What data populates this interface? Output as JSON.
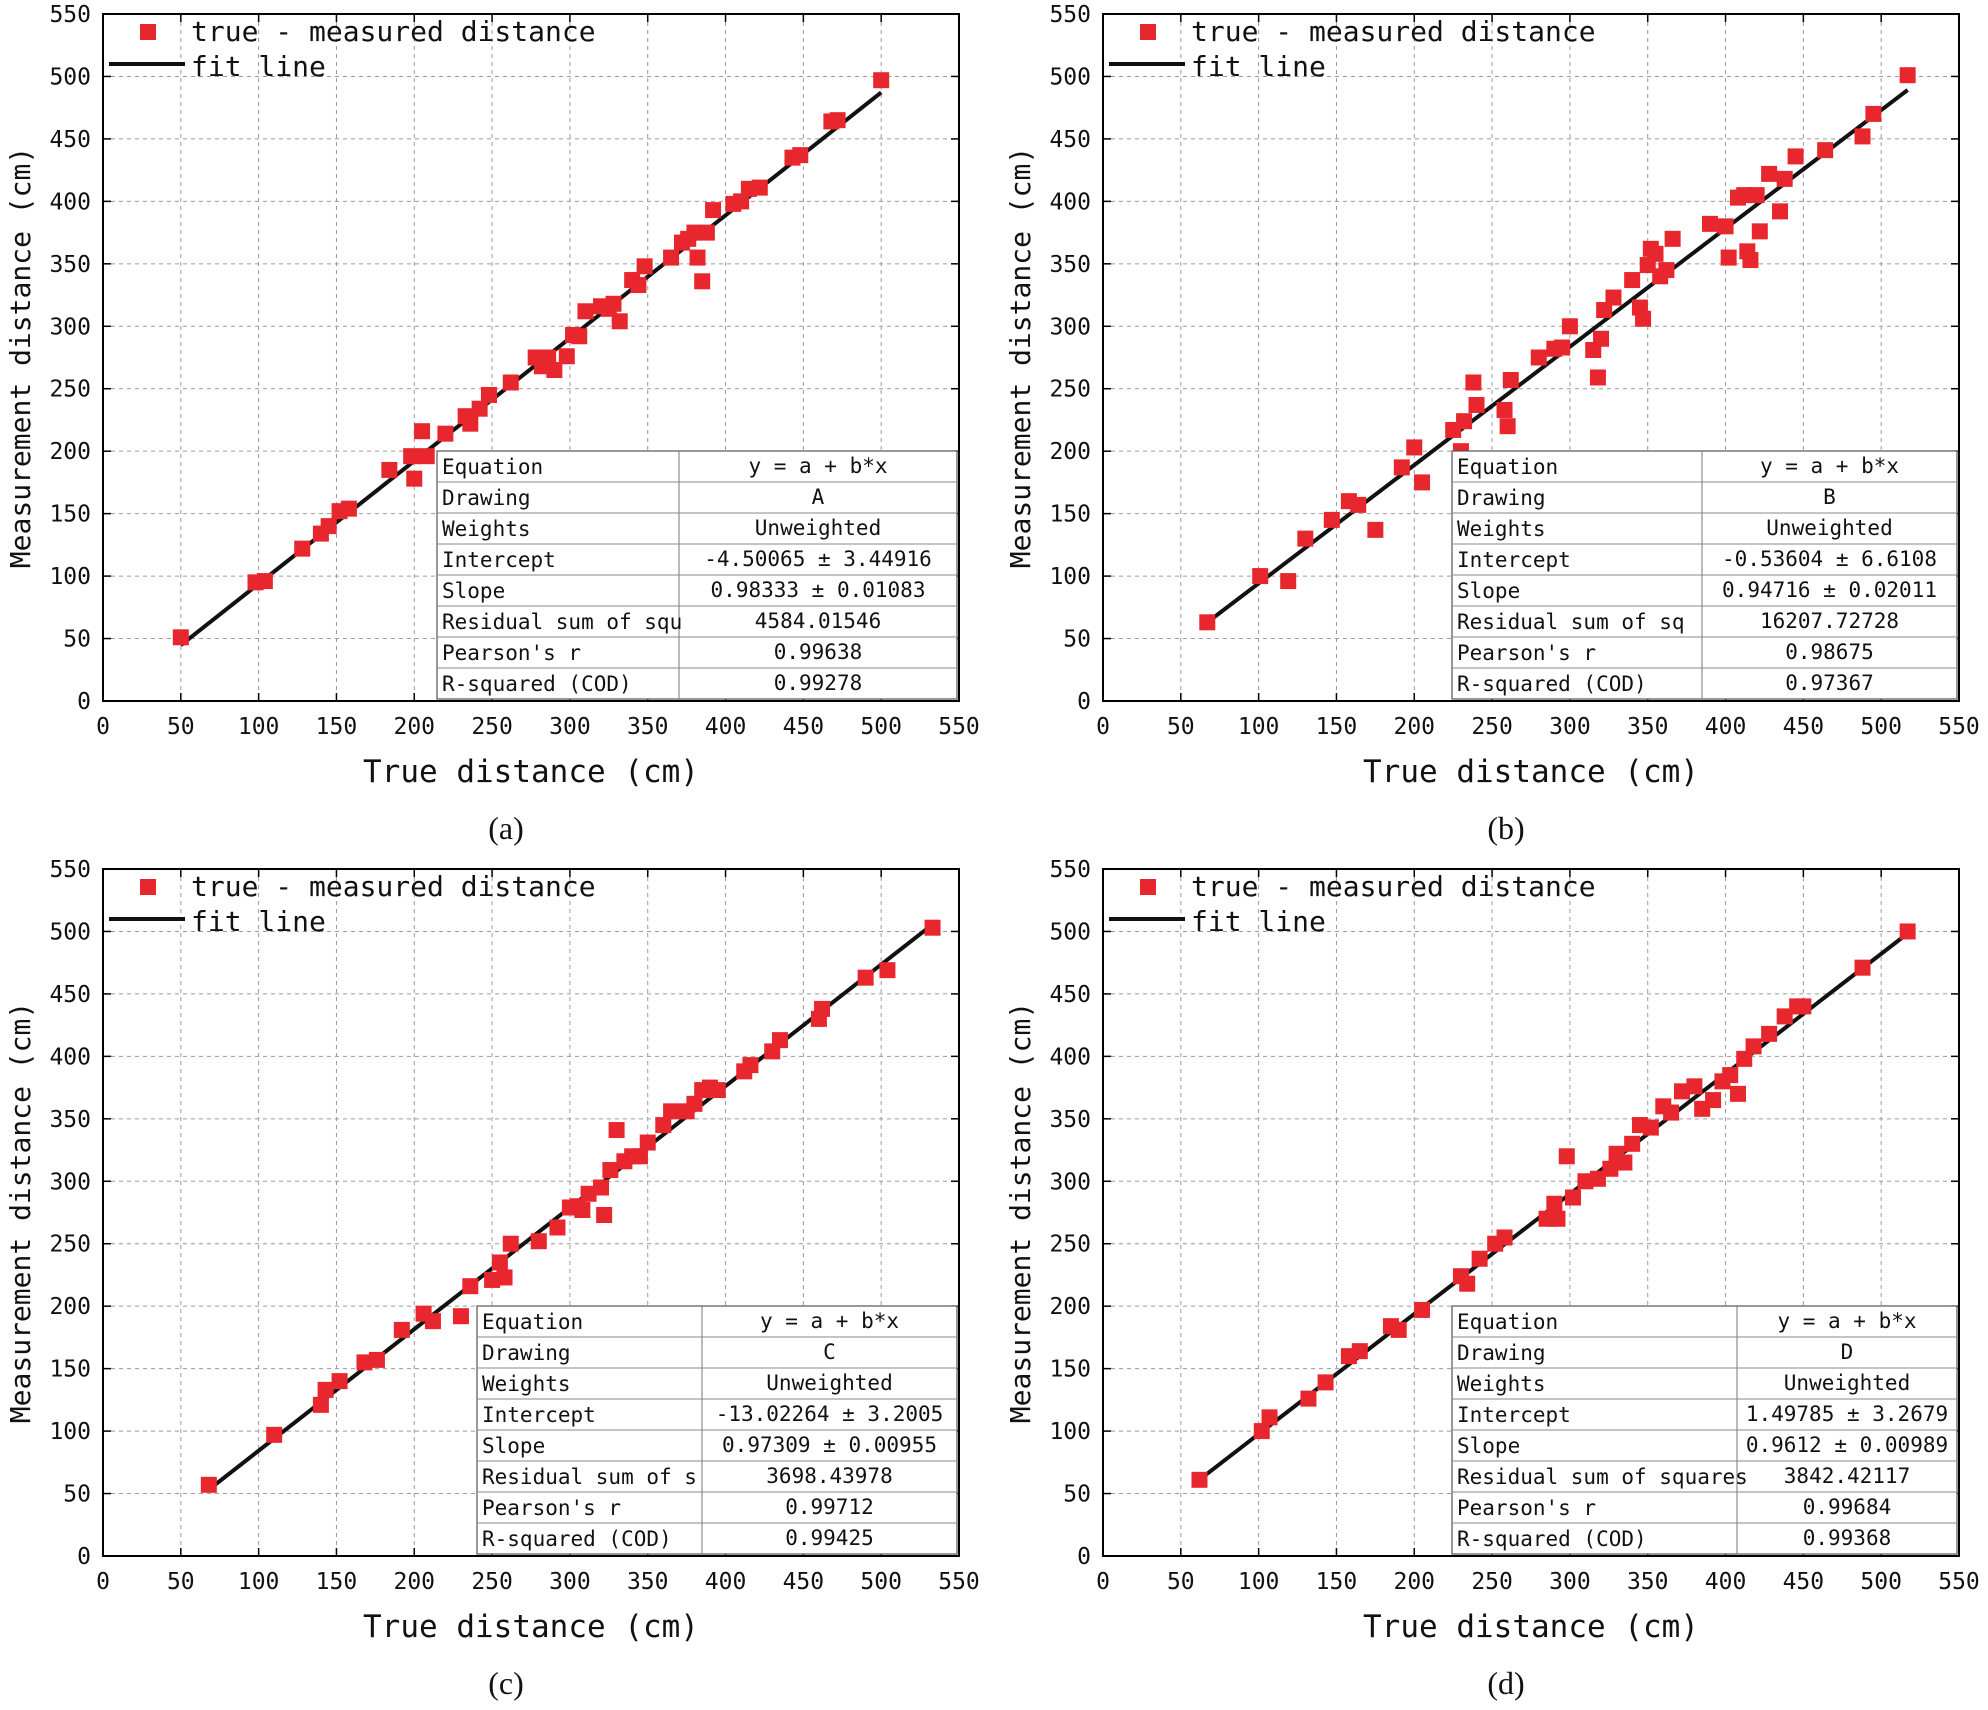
{
  "figure": {
    "legend": {
      "marker_label": "true - measured distance",
      "line_label": "fit line"
    },
    "colors": {
      "marker": "#e8262d",
      "fit_line": "#111111",
      "grid": "#9a9a9a",
      "axis": "#000000"
    }
  },
  "chart_data": [
    {
      "type": "scatter",
      "panel_label": "(a)",
      "xlabel": "True distance (cm)",
      "ylabel": "Measurement distance (cm)",
      "xlim": [
        0,
        550
      ],
      "ylim": [
        0,
        550
      ],
      "xticks": [
        0,
        50,
        100,
        150,
        200,
        250,
        300,
        350,
        400,
        450,
        500,
        550
      ],
      "yticks": [
        0,
        50,
        100,
        150,
        200,
        250,
        300,
        350,
        400,
        450,
        500,
        550
      ],
      "grid": true,
      "legend": [
        "true - measured distance",
        "fit line"
      ],
      "fit": {
        "intercept": -4.50065,
        "slope": 0.98333,
        "x_range": [
          50,
          500
        ]
      },
      "stats_table": [
        [
          "Equation",
          "y = a + b*x"
        ],
        [
          "Drawing",
          "A"
        ],
        [
          "Weights",
          "Unweighted"
        ],
        [
          "Intercept",
          "-4.50065 ± 3.44916"
        ],
        [
          "Slope",
          "0.98333 ± 0.01083"
        ],
        [
          "Residual sum of squ",
          "4584.01546"
        ],
        [
          "Pearson's r",
          "0.99638"
        ],
        [
          "R-squared (COD)",
          "0.99278"
        ]
      ],
      "points": [
        [
          50,
          51
        ],
        [
          98,
          95
        ],
        [
          104,
          96
        ],
        [
          128,
          122
        ],
        [
          140,
          134
        ],
        [
          145,
          140
        ],
        [
          152,
          152
        ],
        [
          158,
          154
        ],
        [
          184,
          185
        ],
        [
          198,
          196
        ],
        [
          200,
          178
        ],
        [
          205,
          216
        ],
        [
          208,
          196
        ],
        [
          220,
          214
        ],
        [
          233,
          228
        ],
        [
          236,
          222
        ],
        [
          242,
          234
        ],
        [
          248,
          245
        ],
        [
          262,
          255
        ],
        [
          278,
          275
        ],
        [
          282,
          268
        ],
        [
          286,
          275
        ],
        [
          290,
          265
        ],
        [
          298,
          276
        ],
        [
          302,
          293
        ],
        [
          306,
          292
        ],
        [
          310,
          312
        ],
        [
          320,
          316
        ],
        [
          325,
          314
        ],
        [
          328,
          318
        ],
        [
          332,
          304
        ],
        [
          340,
          337
        ],
        [
          344,
          333
        ],
        [
          348,
          348
        ],
        [
          365,
          355
        ],
        [
          372,
          367
        ],
        [
          376,
          370
        ],
        [
          380,
          375
        ],
        [
          382,
          355
        ],
        [
          385,
          336
        ],
        [
          388,
          375
        ],
        [
          392,
          393
        ],
        [
          405,
          398
        ],
        [
          410,
          400
        ],
        [
          415,
          410
        ],
        [
          422,
          411
        ],
        [
          443,
          435
        ],
        [
          448,
          437
        ],
        [
          468,
          464
        ],
        [
          472,
          465
        ],
        [
          500,
          497
        ]
      ]
    },
    {
      "type": "scatter",
      "panel_label": "(b)",
      "xlabel": "True distance (cm)",
      "ylabel": "Measurement distance (cm)",
      "xlim": [
        0,
        550
      ],
      "ylim": [
        0,
        550
      ],
      "xticks": [
        0,
        50,
        100,
        150,
        200,
        250,
        300,
        350,
        400,
        450,
        500,
        550
      ],
      "yticks": [
        0,
        50,
        100,
        150,
        200,
        250,
        300,
        350,
        400,
        450,
        500,
        550
      ],
      "grid": true,
      "legend": [
        "true - measured distance",
        "fit line"
      ],
      "fit": {
        "intercept": -0.53604,
        "slope": 0.94716,
        "x_range": [
          67,
          517
        ]
      },
      "stats_table": [
        [
          "Equation",
          "y = a + b*x"
        ],
        [
          "Drawing",
          "B"
        ],
        [
          "Weights",
          "Unweighted"
        ],
        [
          "Intercept",
          "-0.53604 ± 6.6108"
        ],
        [
          "Slope",
          "0.94716 ± 0.02011"
        ],
        [
          "Residual sum of sq",
          "16207.72728"
        ],
        [
          "Pearson's r",
          "0.98675"
        ],
        [
          "R-squared (COD)",
          "0.97367"
        ]
      ],
      "points": [
        [
          67,
          63
        ],
        [
          101,
          100
        ],
        [
          119,
          96
        ],
        [
          130,
          130
        ],
        [
          147,
          145
        ],
        [
          158,
          160
        ],
        [
          164,
          157
        ],
        [
          175,
          137
        ],
        [
          192,
          187
        ],
        [
          200,
          203
        ],
        [
          205,
          175
        ],
        [
          225,
          217
        ],
        [
          230,
          200
        ],
        [
          232,
          224
        ],
        [
          238,
          255
        ],
        [
          240,
          237
        ],
        [
          258,
          233
        ],
        [
          260,
          220
        ],
        [
          262,
          257
        ],
        [
          280,
          275
        ],
        [
          290,
          282
        ],
        [
          295,
          283
        ],
        [
          300,
          300
        ],
        [
          315,
          281
        ],
        [
          318,
          259
        ],
        [
          320,
          290
        ],
        [
          322,
          313
        ],
        [
          328,
          323
        ],
        [
          340,
          337
        ],
        [
          345,
          315
        ],
        [
          347,
          306
        ],
        [
          350,
          349
        ],
        [
          352,
          362
        ],
        [
          355,
          358
        ],
        [
          358,
          340
        ],
        [
          362,
          345
        ],
        [
          366,
          370
        ],
        [
          390,
          382
        ],
        [
          400,
          380
        ],
        [
          402,
          355
        ],
        [
          408,
          403
        ],
        [
          412,
          405
        ],
        [
          414,
          360
        ],
        [
          416,
          353
        ],
        [
          420,
          405
        ],
        [
          422,
          376
        ],
        [
          428,
          422
        ],
        [
          435,
          392
        ],
        [
          438,
          418
        ],
        [
          445,
          436
        ],
        [
          464,
          441
        ],
        [
          488,
          452
        ],
        [
          495,
          470
        ],
        [
          517,
          501
        ]
      ]
    },
    {
      "type": "scatter",
      "panel_label": "(c)",
      "xlabel": "True distance (cm)",
      "ylabel": "Measurement distance (cm)",
      "xlim": [
        0,
        550
      ],
      "ylim": [
        0,
        550
      ],
      "xticks": [
        0,
        50,
        100,
        150,
        200,
        250,
        300,
        350,
        400,
        450,
        500,
        550
      ],
      "yticks": [
        0,
        50,
        100,
        150,
        200,
        250,
        300,
        350,
        400,
        450,
        500,
        550
      ],
      "grid": true,
      "legend": [
        "true - measured distance",
        "fit line"
      ],
      "fit": {
        "intercept": -13.02264,
        "slope": 0.97309,
        "x_range": [
          68,
          533
        ]
      },
      "stats_table": [
        [
          "Equation",
          "y = a + b*x"
        ],
        [
          "Drawing",
          "C"
        ],
        [
          "Weights",
          "Unweighted"
        ],
        [
          "Intercept",
          "-13.02264 ± 3.2005"
        ],
        [
          "Slope",
          "0.97309 ± 0.00955"
        ],
        [
          "Residual sum of s",
          "3698.43978"
        ],
        [
          "Pearson's r",
          "0.99712"
        ],
        [
          "R-squared (COD)",
          "0.99425"
        ]
      ],
      "points": [
        [
          68,
          57
        ],
        [
          110,
          97
        ],
        [
          140,
          121
        ],
        [
          143,
          133
        ],
        [
          152,
          140
        ],
        [
          168,
          155
        ],
        [
          176,
          157
        ],
        [
          192,
          181
        ],
        [
          206,
          194
        ],
        [
          212,
          188
        ],
        [
          230,
          192
        ],
        [
          236,
          216
        ],
        [
          250,
          221
        ],
        [
          255,
          235
        ],
        [
          258,
          223
        ],
        [
          262,
          250
        ],
        [
          280,
          252
        ],
        [
          292,
          263
        ],
        [
          300,
          279
        ],
        [
          305,
          280
        ],
        [
          308,
          277
        ],
        [
          312,
          290
        ],
        [
          320,
          295
        ],
        [
          322,
          273
        ],
        [
          326,
          309
        ],
        [
          330,
          341
        ],
        [
          335,
          316
        ],
        [
          340,
          320
        ],
        [
          345,
          320
        ],
        [
          350,
          331
        ],
        [
          360,
          345
        ],
        [
          365,
          356
        ],
        [
          375,
          356
        ],
        [
          380,
          362
        ],
        [
          385,
          373
        ],
        [
          390,
          375
        ],
        [
          395,
          373
        ],
        [
          412,
          388
        ],
        [
          416,
          393
        ],
        [
          430,
          404
        ],
        [
          435,
          413
        ],
        [
          460,
          430
        ],
        [
          462,
          438
        ],
        [
          490,
          463
        ],
        [
          504,
          469
        ],
        [
          533,
          503
        ]
      ]
    },
    {
      "type": "scatter",
      "panel_label": "(d)",
      "xlabel": "True distance (cm)",
      "ylabel": "Measurement distance (cm)",
      "xlim": [
        0,
        550
      ],
      "ylim": [
        0,
        550
      ],
      "xticks": [
        0,
        50,
        100,
        150,
        200,
        250,
        300,
        350,
        400,
        450,
        500,
        550
      ],
      "yticks": [
        0,
        50,
        100,
        150,
        200,
        250,
        300,
        350,
        400,
        450,
        500,
        550
      ],
      "grid": true,
      "legend": [
        "true - measured distance",
        "fit line"
      ],
      "fit": {
        "intercept": 1.49785,
        "slope": 0.9612,
        "x_range": [
          62,
          517
        ]
      },
      "stats_table": [
        [
          "Equation",
          "y = a + b*x"
        ],
        [
          "Drawing",
          "D"
        ],
        [
          "Weights",
          "Unweighted"
        ],
        [
          "Intercept",
          "1.49785 ± 3.2679"
        ],
        [
          "Slope",
          "0.9612 ± 0.00989"
        ],
        [
          "Residual sum of squares",
          "3842.42117"
        ],
        [
          "Pearson's r",
          "0.99684"
        ],
        [
          "R-squared (COD)",
          "0.99368"
        ]
      ],
      "points": [
        [
          62,
          61
        ],
        [
          102,
          100
        ],
        [
          107,
          111
        ],
        [
          132,
          126
        ],
        [
          143,
          139
        ],
        [
          158,
          160
        ],
        [
          165,
          164
        ],
        [
          185,
          184
        ],
        [
          190,
          181
        ],
        [
          205,
          197
        ],
        [
          230,
          224
        ],
        [
          234,
          218
        ],
        [
          242,
          238
        ],
        [
          252,
          250
        ],
        [
          258,
          255
        ],
        [
          285,
          270
        ],
        [
          290,
          282
        ],
        [
          292,
          270
        ],
        [
          298,
          320
        ],
        [
          302,
          287
        ],
        [
          310,
          300
        ],
        [
          318,
          302
        ],
        [
          326,
          310
        ],
        [
          330,
          322
        ],
        [
          335,
          315
        ],
        [
          340,
          330
        ],
        [
          345,
          345
        ],
        [
          352,
          343
        ],
        [
          360,
          360
        ],
        [
          365,
          355
        ],
        [
          372,
          372
        ],
        [
          380,
          376
        ],
        [
          385,
          358
        ],
        [
          392,
          365
        ],
        [
          398,
          380
        ],
        [
          403,
          385
        ],
        [
          408,
          370
        ],
        [
          412,
          398
        ],
        [
          418,
          408
        ],
        [
          428,
          418
        ],
        [
          438,
          432
        ],
        [
          446,
          440
        ],
        [
          450,
          440
        ],
        [
          488,
          471
        ],
        [
          517,
          500
        ]
      ]
    }
  ]
}
